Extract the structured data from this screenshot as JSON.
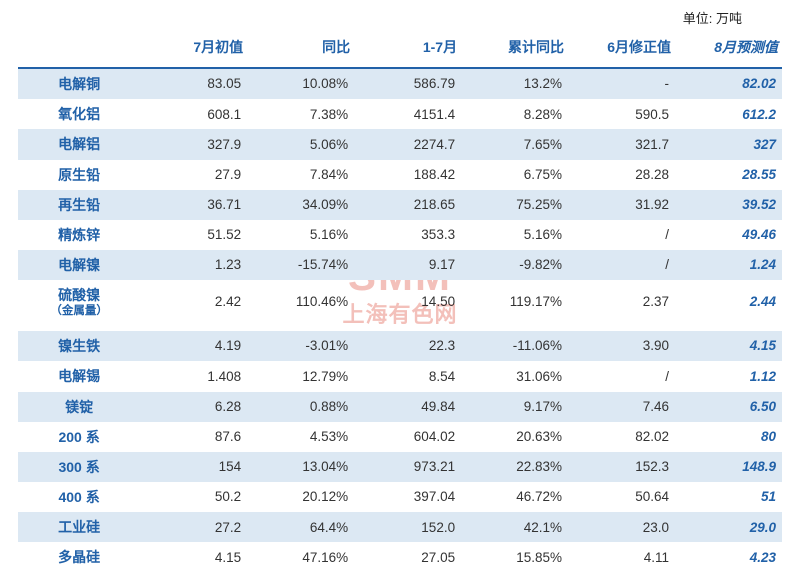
{
  "unit_label": "单位: 万吨",
  "watermark": {
    "logo": "SMM",
    "text": "上海有色网"
  },
  "colors": {
    "header_text": "#2161a8",
    "band_bg": "#dce8f3",
    "text": "#333333",
    "forecast_text": "#2161a8",
    "watermark": "#d9331f",
    "background": "#ffffff"
  },
  "columns": [
    {
      "key": "name",
      "label": ""
    },
    {
      "key": "jul_init",
      "label": "7月初值"
    },
    {
      "key": "yoy",
      "label": "同比"
    },
    {
      "key": "ytd",
      "label": "1-7月"
    },
    {
      "key": "ytd_yoy",
      "label": "累计同比"
    },
    {
      "key": "jun_rev",
      "label": "6月修正值"
    },
    {
      "key": "aug_fc",
      "label": "8月预测值",
      "forecast": true
    }
  ],
  "rows": [
    {
      "band": true,
      "name": "电解铜",
      "jul_init": "83.05",
      "yoy": "10.08%",
      "ytd": "586.79",
      "ytd_yoy": "13.2%",
      "jun_rev": "-",
      "aug_fc": "82.02"
    },
    {
      "band": false,
      "name": "氧化铝",
      "jul_init": "608.1",
      "yoy": "7.38%",
      "ytd": "4151.4",
      "ytd_yoy": "8.28%",
      "jun_rev": "590.5",
      "aug_fc": "612.2"
    },
    {
      "band": true,
      "name": "电解铝",
      "jul_init": "327.9",
      "yoy": "5.06%",
      "ytd": "2274.7",
      "ytd_yoy": "7.65%",
      "jun_rev": "321.7",
      "aug_fc": "327"
    },
    {
      "band": false,
      "name": "原生铅",
      "jul_init": "27.9",
      "yoy": "7.84%",
      "ytd": "188.42",
      "ytd_yoy": "6.75%",
      "jun_rev": "28.28",
      "aug_fc": "28.55"
    },
    {
      "band": true,
      "name": "再生铅",
      "jul_init": "36.71",
      "yoy": "34.09%",
      "ytd": "218.65",
      "ytd_yoy": "75.25%",
      "jun_rev": "31.92",
      "aug_fc": "39.52"
    },
    {
      "band": false,
      "name": "精炼锌",
      "jul_init": "51.52",
      "yoy": "5.16%",
      "ytd": "353.3",
      "ytd_yoy": "5.16%",
      "jun_rev": "/",
      "aug_fc": "49.46"
    },
    {
      "band": true,
      "name": "电解镍",
      "jul_init": "1.23",
      "yoy": "-15.74%",
      "ytd": "9.17",
      "ytd_yoy": "-9.82%",
      "jun_rev": "/",
      "aug_fc": "1.24"
    },
    {
      "band": false,
      "name": "硫酸镍",
      "sub": "（金属量）",
      "jul_init": "2.42",
      "yoy": "110.46%",
      "ytd": "14.50",
      "ytd_yoy": "119.17%",
      "jun_rev": "2.37",
      "aug_fc": "2.44"
    },
    {
      "spacer": true
    },
    {
      "band": true,
      "name": "镍生铁",
      "jul_init": "4.19",
      "yoy": "-3.01%",
      "ytd": "22.3",
      "ytd_yoy": "-11.06%",
      "jun_rev": "3.90",
      "aug_fc": "4.15"
    },
    {
      "band": false,
      "name": "电解锡",
      "jul_init": "1.408",
      "yoy": "12.79%",
      "ytd": "8.54",
      "ytd_yoy": "31.06%",
      "jun_rev": "/",
      "aug_fc": "1.12"
    },
    {
      "band": true,
      "name": "镁锭",
      "jul_init": "6.28",
      "yoy": "0.88%",
      "ytd": "49.84",
      "ytd_yoy": "9.17%",
      "jun_rev": "7.46",
      "aug_fc": "6.50"
    },
    {
      "band": false,
      "name": "200 系",
      "jul_init": "87.6",
      "yoy": "4.53%",
      "ytd": "604.02",
      "ytd_yoy": "20.63%",
      "jun_rev": "82.02",
      "aug_fc": "80"
    },
    {
      "band": true,
      "name": "300 系",
      "jul_init": "154",
      "yoy": "13.04%",
      "ytd": "973.21",
      "ytd_yoy": "22.83%",
      "jun_rev": "152.3",
      "aug_fc": "148.9"
    },
    {
      "band": false,
      "name": "400 系",
      "jul_init": "50.2",
      "yoy": "20.12%",
      "ytd": "397.04",
      "ytd_yoy": "46.72%",
      "jun_rev": "50.64",
      "aug_fc": "51"
    },
    {
      "band": true,
      "name": "工业硅",
      "jul_init": "27.2",
      "yoy": "64.4%",
      "ytd": "152.0",
      "ytd_yoy": "42.1%",
      "jun_rev": "23.0",
      "aug_fc": "29.0"
    },
    {
      "band": false,
      "name": "多晶硅",
      "jul_init": "4.15",
      "yoy": "47.16%",
      "ytd": "27.05",
      "ytd_yoy": "15.85%",
      "jun_rev": "4.11",
      "aug_fc": "4.23"
    }
  ]
}
